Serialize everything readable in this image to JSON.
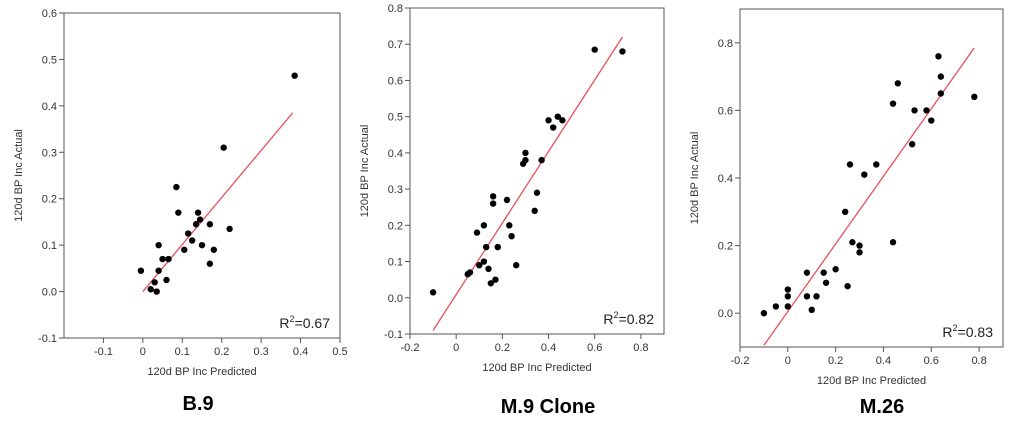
{
  "chart_data": [
    {
      "type": "scatter",
      "title": "B.9",
      "xlabel": "120d BP Inc Predicted",
      "ylabel": "120d BP Inc Actual",
      "xlim": [
        -0.2,
        0.5
      ],
      "ylim": [
        -0.1,
        0.6
      ],
      "xticks": [
        "-0.1",
        "0",
        "0.1",
        "0.2",
        "0.3",
        "0.4",
        "0.5"
      ],
      "yticks": [
        "-0.1",
        "0.0",
        "0.1",
        "0.2",
        "0.3",
        "0.4",
        "0.5",
        "0.6"
      ],
      "annotation_prefix": "R",
      "annotation_sup": "2",
      "annotation_value": "=0.67",
      "fit_line": [
        [
          0.0,
          0.0
        ],
        [
          0.38,
          0.385
        ]
      ],
      "points": [
        [
          -0.005,
          0.045
        ],
        [
          0.02,
          0.005
        ],
        [
          0.03,
          0.02
        ],
        [
          0.035,
          0.0
        ],
        [
          0.04,
          0.045
        ],
        [
          0.04,
          0.1
        ],
        [
          0.05,
          0.07
        ],
        [
          0.06,
          0.025
        ],
        [
          0.065,
          0.07
        ],
        [
          0.085,
          0.225
        ],
        [
          0.09,
          0.17
        ],
        [
          0.105,
          0.09
        ],
        [
          0.115,
          0.125
        ],
        [
          0.125,
          0.11
        ],
        [
          0.135,
          0.145
        ],
        [
          0.14,
          0.17
        ],
        [
          0.145,
          0.155
        ],
        [
          0.15,
          0.1
        ],
        [
          0.17,
          0.145
        ],
        [
          0.17,
          0.06
        ],
        [
          0.18,
          0.09
        ],
        [
          0.205,
          0.31
        ],
        [
          0.22,
          0.135
        ],
        [
          0.385,
          0.465
        ]
      ]
    },
    {
      "type": "scatter",
      "title": "M.9 Clone",
      "xlabel": "120d BP Inc Predicted",
      "ylabel": "120d BP Inc Actual",
      "xlim": [
        -0.2,
        0.9
      ],
      "ylim": [
        -0.1,
        0.8
      ],
      "xticks": [
        "-0.2",
        "0",
        "0.2",
        "0.4",
        "0.6",
        "0.8"
      ],
      "yticks": [
        "-0.1",
        "0.0",
        "0.1",
        "0.2",
        "0.3",
        "0.4",
        "0.5",
        "0.6",
        "0.7",
        "0.8"
      ],
      "annotation_prefix": "R",
      "annotation_sup": "2",
      "annotation_value": "=0.82",
      "fit_line": [
        [
          -0.1,
          -0.09
        ],
        [
          0.72,
          0.72
        ]
      ],
      "points": [
        [
          -0.1,
          0.015
        ],
        [
          0.05,
          0.065
        ],
        [
          0.06,
          0.07
        ],
        [
          0.09,
          0.18
        ],
        [
          0.1,
          0.09
        ],
        [
          0.12,
          0.2
        ],
        [
          0.12,
          0.1
        ],
        [
          0.13,
          0.14
        ],
        [
          0.14,
          0.08
        ],
        [
          0.15,
          0.04
        ],
        [
          0.16,
          0.26
        ],
        [
          0.16,
          0.28
        ],
        [
          0.17,
          0.05
        ],
        [
          0.18,
          0.14
        ],
        [
          0.22,
          0.27
        ],
        [
          0.23,
          0.2
        ],
        [
          0.24,
          0.17
        ],
        [
          0.26,
          0.09
        ],
        [
          0.29,
          0.37
        ],
        [
          0.3,
          0.4
        ],
        [
          0.3,
          0.38
        ],
        [
          0.34,
          0.24
        ],
        [
          0.35,
          0.29
        ],
        [
          0.37,
          0.38
        ],
        [
          0.4,
          0.49
        ],
        [
          0.42,
          0.47
        ],
        [
          0.44,
          0.5
        ],
        [
          0.46,
          0.49
        ],
        [
          0.6,
          0.685
        ],
        [
          0.72,
          0.68
        ]
      ]
    },
    {
      "type": "scatter",
      "title": "M.26",
      "xlabel": "120d BP Inc Predicted",
      "ylabel": "120d BP Inc Actual",
      "xlim": [
        -0.2,
        0.9
      ],
      "ylim": [
        -0.1,
        0.9
      ],
      "xticks": [
        "-0.2",
        "0",
        "0.2",
        "0.4",
        "0.6",
        "0.8"
      ],
      "yticks": [
        "0.0",
        "0.2",
        "0.4",
        "0.6",
        "0.8"
      ],
      "annotation_prefix": "R",
      "annotation_sup": "2",
      "annotation_value": "=0.83",
      "fit_line": [
        [
          -0.1,
          -0.095
        ],
        [
          0.78,
          0.785
        ]
      ],
      "points": [
        [
          -0.1,
          0.0
        ],
        [
          -0.05,
          0.02
        ],
        [
          0.0,
          0.05
        ],
        [
          0.0,
          0.07
        ],
        [
          0.0,
          0.02
        ],
        [
          0.08,
          0.12
        ],
        [
          0.08,
          0.05
        ],
        [
          0.1,
          0.01
        ],
        [
          0.12,
          0.05
        ],
        [
          0.15,
          0.12
        ],
        [
          0.16,
          0.09
        ],
        [
          0.2,
          0.13
        ],
        [
          0.24,
          0.3
        ],
        [
          0.25,
          0.08
        ],
        [
          0.26,
          0.44
        ],
        [
          0.27,
          0.21
        ],
        [
          0.3,
          0.2
        ],
        [
          0.3,
          0.18
        ],
        [
          0.32,
          0.41
        ],
        [
          0.37,
          0.44
        ],
        [
          0.44,
          0.62
        ],
        [
          0.44,
          0.21
        ],
        [
          0.46,
          0.68
        ],
        [
          0.52,
          0.5
        ],
        [
          0.53,
          0.6
        ],
        [
          0.58,
          0.6
        ],
        [
          0.6,
          0.57
        ],
        [
          0.63,
          0.76
        ],
        [
          0.64,
          0.7
        ],
        [
          0.64,
          0.65
        ],
        [
          0.78,
          0.64
        ]
      ]
    }
  ]
}
